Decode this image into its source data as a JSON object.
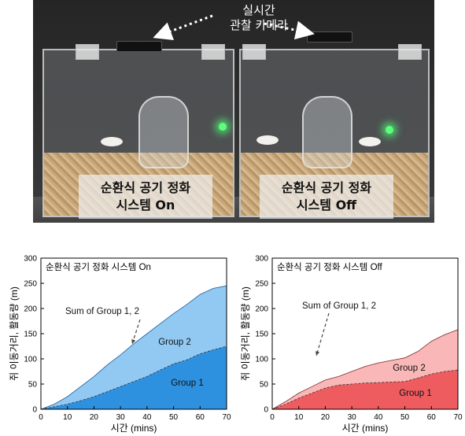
{
  "photo": {
    "camera_label": [
      "실시간",
      "관찰 카메라"
    ],
    "left_label": [
      "순환식 공기 정화",
      "시스템 On"
    ],
    "right_label": [
      "순환식 공기 정화",
      "시스템 Off"
    ]
  },
  "colors": {
    "on_group1": "#2e91e0",
    "on_total": "#92c9f3",
    "off_group1": "#ee5c60",
    "off_total": "#f9b8b7"
  },
  "chart_data": [
    {
      "type": "area",
      "title": "순환식 공기 정화 시스템 On",
      "xlabel": "시간 (mins)",
      "ylabel": "쥐 이동거리, 활동량 (m)",
      "xlim": [
        0,
        70
      ],
      "ylim": [
        0,
        300
      ],
      "xticks": [
        0,
        10,
        20,
        30,
        40,
        50,
        60,
        70
      ],
      "yticks": [
        0,
        50,
        100,
        150,
        200,
        250,
        300
      ],
      "x": [
        0,
        5,
        10,
        15,
        20,
        25,
        30,
        35,
        40,
        45,
        50,
        55,
        60,
        65,
        70
      ],
      "series": [
        {
          "name": "Group 1",
          "values": [
            0,
            5,
            10,
            17,
            25,
            35,
            45,
            55,
            65,
            78,
            90,
            98,
            110,
            118,
            125
          ]
        },
        {
          "name": "Sum of Group 1, 2",
          "values": [
            0,
            10,
            25,
            45,
            65,
            88,
            108,
            130,
            150,
            170,
            190,
            208,
            228,
            240,
            245
          ]
        }
      ],
      "annotations": [
        "Sum of Group 1, 2",
        "Group 2",
        "Group 1"
      ],
      "grid": false
    },
    {
      "type": "area",
      "title": "순환식 공기 정화 시스템 Off",
      "xlabel": "시간 (mins)",
      "ylabel": "쥐 이동거리, 활동량 (m)",
      "xlim": [
        0,
        70
      ],
      "ylim": [
        0,
        300
      ],
      "xticks": [
        0,
        10,
        20,
        30,
        40,
        50,
        60,
        70
      ],
      "yticks": [
        0,
        50,
        100,
        150,
        200,
        250,
        300
      ],
      "x": [
        0,
        5,
        10,
        15,
        20,
        25,
        30,
        35,
        40,
        45,
        50,
        55,
        60,
        65,
        70
      ],
      "series": [
        {
          "name": "Group 1",
          "values": [
            0,
            10,
            22,
            32,
            42,
            48,
            50,
            52,
            53,
            54,
            55,
            62,
            70,
            75,
            78
          ]
        },
        {
          "name": "Sum of Group 1, 2",
          "values": [
            0,
            15,
            32,
            45,
            58,
            65,
            75,
            85,
            92,
            97,
            102,
            115,
            135,
            148,
            158
          ]
        }
      ],
      "annotations": [
        "Sum of Group 1, 2",
        "Group 2",
        "Group 1"
      ],
      "grid": false
    }
  ]
}
